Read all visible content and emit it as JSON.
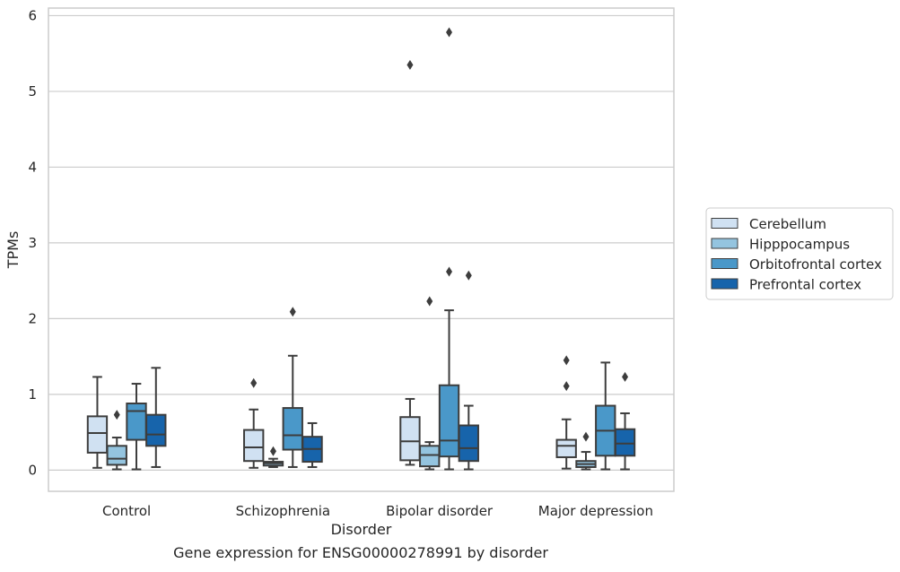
{
  "chart_data": {
    "type": "box",
    "title": "Gene expression for ENSG00000278991 by disorder",
    "xlabel": "Disorder",
    "ylabel": "TPMs",
    "ylim": [
      -0.28,
      6.1
    ],
    "yticks": [
      0,
      1,
      2,
      3,
      4,
      5,
      6
    ],
    "grid": true,
    "legend_position": "right",
    "categories": [
      "Control",
      "Schizophrenia",
      "Bipolar disorder",
      "Major depression"
    ],
    "series": [
      {
        "name": "Cerebellum",
        "color": "#d0e1f2",
        "boxes": [
          {
            "whislo": 0.03,
            "q1": 0.23,
            "med": 0.49,
            "q3": 0.71,
            "whishi": 1.23,
            "fliers": []
          },
          {
            "whislo": 0.03,
            "q1": 0.12,
            "med": 0.3,
            "q3": 0.53,
            "whishi": 0.8,
            "fliers": [
              1.15
            ]
          },
          {
            "whislo": 0.07,
            "q1": 0.13,
            "med": 0.38,
            "q3": 0.7,
            "whishi": 0.94,
            "fliers": [
              5.35
            ]
          },
          {
            "whislo": 0.02,
            "q1": 0.17,
            "med": 0.32,
            "q3": 0.4,
            "whishi": 0.67,
            "fliers": [
              1.11,
              1.45
            ]
          }
        ]
      },
      {
        "name": "Hipppocampus",
        "color": "#94c4df",
        "boxes": [
          {
            "whislo": 0.01,
            "q1": 0.07,
            "med": 0.15,
            "q3": 0.32,
            "whishi": 0.43,
            "fliers": [
              0.73
            ]
          },
          {
            "whislo": 0.04,
            "q1": 0.06,
            "med": 0.09,
            "q3": 0.11,
            "whishi": 0.15,
            "fliers": [
              0.25
            ]
          },
          {
            "whislo": 0.01,
            "q1": 0.05,
            "med": 0.2,
            "q3": 0.32,
            "whishi": 0.37,
            "fliers": [
              2.23
            ]
          },
          {
            "whislo": 0.01,
            "q1": 0.04,
            "med": 0.08,
            "q3": 0.12,
            "whishi": 0.24,
            "fliers": [
              0.44
            ]
          }
        ]
      },
      {
        "name": "Orbitofrontal cortex",
        "color": "#4a98c9",
        "boxes": [
          {
            "whislo": 0.01,
            "q1": 0.4,
            "med": 0.78,
            "q3": 0.88,
            "whishi": 1.14,
            "fliers": []
          },
          {
            "whislo": 0.04,
            "q1": 0.27,
            "med": 0.46,
            "q3": 0.82,
            "whishi": 1.51,
            "fliers": [
              2.09
            ]
          },
          {
            "whislo": 0.01,
            "q1": 0.18,
            "med": 0.39,
            "q3": 1.12,
            "whishi": 2.11,
            "fliers": [
              2.62,
              5.78
            ]
          },
          {
            "whislo": 0.01,
            "q1": 0.19,
            "med": 0.52,
            "q3": 0.85,
            "whishi": 1.42,
            "fliers": []
          }
        ]
      },
      {
        "name": "Prefrontal cortex",
        "color": "#1764ab",
        "boxes": [
          {
            "whislo": 0.04,
            "q1": 0.32,
            "med": 0.47,
            "q3": 0.73,
            "whishi": 1.35,
            "fliers": []
          },
          {
            "whislo": 0.04,
            "q1": 0.11,
            "med": 0.28,
            "q3": 0.44,
            "whishi": 0.62,
            "fliers": []
          },
          {
            "whislo": 0.01,
            "q1": 0.12,
            "med": 0.29,
            "q3": 0.59,
            "whishi": 0.85,
            "fliers": [
              2.57
            ]
          },
          {
            "whislo": 0.01,
            "q1": 0.19,
            "med": 0.35,
            "q3": 0.54,
            "whishi": 0.75,
            "fliers": [
              1.23
            ]
          }
        ]
      }
    ]
  }
}
